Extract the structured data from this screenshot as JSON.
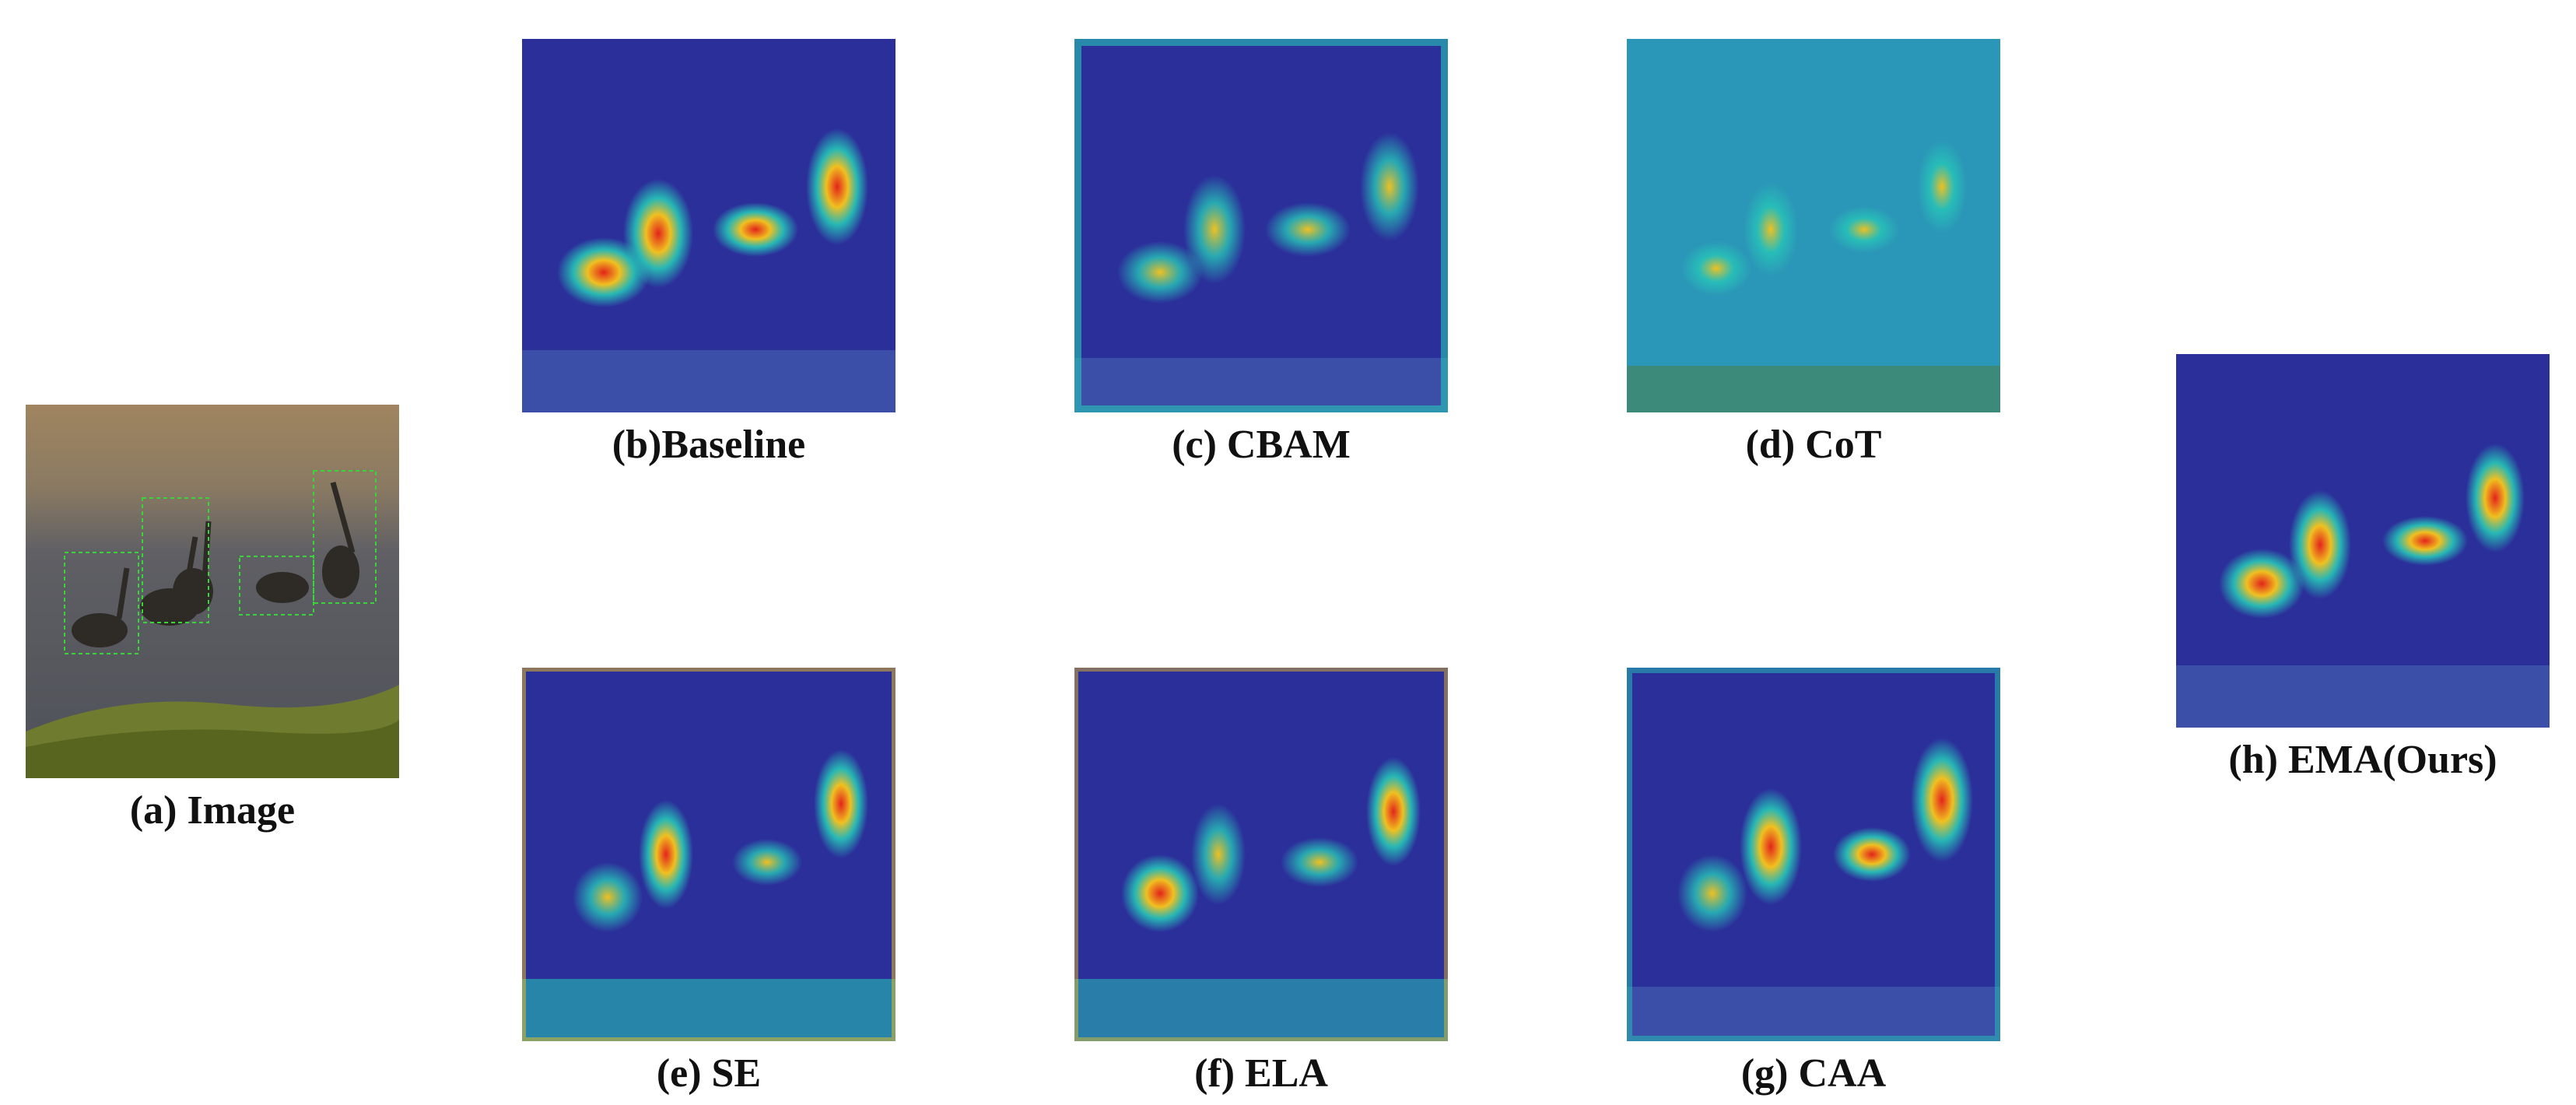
{
  "figure": {
    "panels": [
      {
        "id": "a",
        "caption": "(a) Image",
        "kind": "photo"
      },
      {
        "id": "b",
        "caption": "(b)Baseline",
        "kind": "heatmap"
      },
      {
        "id": "c",
        "caption": "(c) CBAM",
        "kind": "heatmap"
      },
      {
        "id": "d",
        "caption": "(d) CoT",
        "kind": "heatmap"
      },
      {
        "id": "e",
        "caption": "(e) SE",
        "kind": "heatmap"
      },
      {
        "id": "f",
        "caption": "(f) ELA",
        "kind": "heatmap"
      },
      {
        "id": "g",
        "caption": "(g) CAA",
        "kind": "heatmap"
      },
      {
        "id": "h",
        "caption": "(h) EMA(Ours)",
        "kind": "heatmap"
      }
    ]
  },
  "colors": {
    "heat_low": "#2b2f9a",
    "heat_mid": "#26c6b8",
    "heat_high": "#e3241b",
    "photo_water": "#5d5e63",
    "photo_grass": "#6f7b2f",
    "detection_box": "#39d43a"
  }
}
